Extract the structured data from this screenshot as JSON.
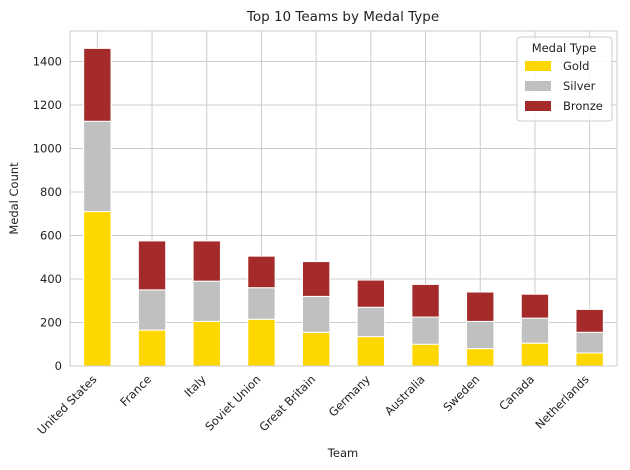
{
  "chart_data": {
    "type": "bar",
    "stacked": true,
    "title": "Top 10 Teams by Medal Type",
    "xlabel": "Team",
    "ylabel": "Medal Count",
    "ylim": [
      0,
      1540
    ],
    "yticks": [
      0,
      200,
      400,
      600,
      800,
      1000,
      1200,
      1400
    ],
    "grid": true,
    "legend": {
      "title": "Medal Type",
      "position": "top-right"
    },
    "categories": [
      "United States",
      "France",
      "Italy",
      "Soviet Union",
      "Great Britain",
      "Germany",
      "Australia",
      "Sweden",
      "Canada",
      "Netherlands"
    ],
    "series": [
      {
        "name": "Gold",
        "color": "#ffd700",
        "values": [
          710,
          165,
          205,
          215,
          155,
          135,
          100,
          80,
          105,
          60
        ]
      },
      {
        "name": "Silver",
        "color": "#c0c0c0",
        "values": [
          415,
          185,
          185,
          145,
          165,
          135,
          125,
          125,
          115,
          95
        ]
      },
      {
        "name": "Bronze",
        "color": "#a52a2a",
        "values": [
          335,
          225,
          185,
          145,
          160,
          125,
          150,
          135,
          110,
          105
        ]
      }
    ]
  }
}
